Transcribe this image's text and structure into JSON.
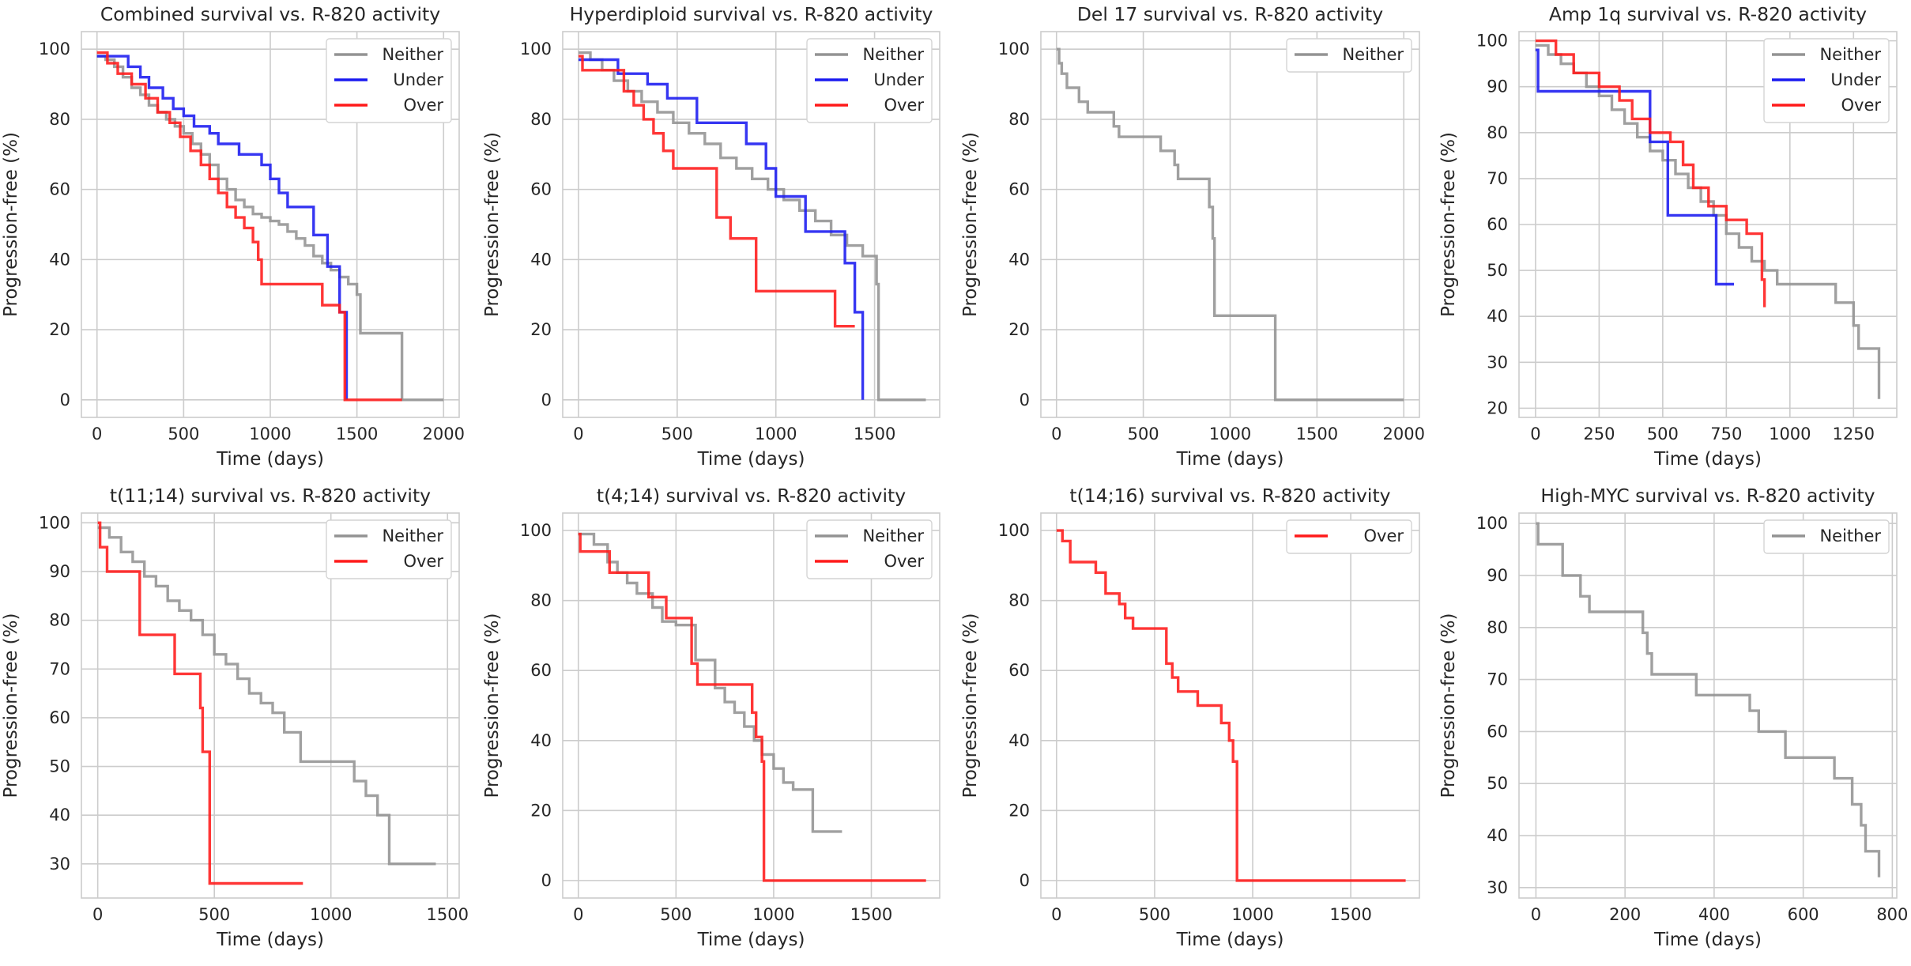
{
  "colors": {
    "Neither": "#939393",
    "Under": "#1a1af0",
    "Over": "#ff1a1a"
  },
  "chart_data": [
    {
      "type": "line",
      "title": "Combined survival vs. R-820 activity",
      "xlabel": "Time (days)",
      "ylabel": "Progression-free (%)",
      "xlim": [
        -90,
        2090
      ],
      "ylim": [
        -5,
        105
      ],
      "xticks": [
        0,
        500,
        1000,
        1500,
        2000
      ],
      "yticks": [
        0,
        20,
        40,
        60,
        80,
        100
      ],
      "grid": true,
      "legend": "top-right",
      "series": [
        {
          "name": "Neither",
          "x": [
            0,
            50,
            100,
            150,
            200,
            250,
            300,
            350,
            400,
            450,
            500,
            550,
            600,
            650,
            700,
            750,
            800,
            850,
            900,
            950,
            1000,
            1050,
            1100,
            1150,
            1200,
            1250,
            1300,
            1350,
            1400,
            1450,
            1500,
            1520,
            1750,
            1760,
            2000
          ],
          "y": [
            98,
            97,
            95,
            92,
            89,
            87,
            84,
            82,
            80,
            78,
            76,
            73,
            70,
            67,
            63,
            60,
            57,
            55,
            53,
            52,
            51,
            50,
            48,
            46,
            44,
            41,
            39,
            37,
            35,
            33,
            30,
            19,
            19,
            0,
            0
          ]
        },
        {
          "name": "Under",
          "x": [
            0,
            120,
            180,
            250,
            300,
            380,
            440,
            500,
            560,
            650,
            700,
            820,
            950,
            1000,
            1050,
            1100,
            1250,
            1330,
            1400,
            1440
          ],
          "y": [
            98,
            98,
            95,
            92,
            89,
            86,
            83,
            81,
            78,
            76,
            73,
            70,
            67,
            63,
            59,
            55,
            47,
            38,
            25,
            0
          ]
        },
        {
          "name": "Over",
          "x": [
            0,
            60,
            120,
            200,
            280,
            350,
            420,
            480,
            540,
            600,
            650,
            700,
            750,
            800,
            850,
            900,
            930,
            950,
            1300,
            1400,
            1430,
            1760
          ],
          "y": [
            99,
            96,
            93,
            90,
            86,
            82,
            79,
            75,
            71,
            67,
            63,
            59,
            55,
            52,
            49,
            45,
            40,
            33,
            27,
            25,
            0,
            0
          ]
        }
      ]
    },
    {
      "type": "line",
      "title": "Hyperdiploid survival vs. R-820 activity",
      "xlabel": "Time (days)",
      "ylabel": "Progression-free (%)",
      "xlim": [
        -80,
        1830
      ],
      "ylim": [
        -5,
        105
      ],
      "xticks": [
        0,
        500,
        1000,
        1500
      ],
      "yticks": [
        0,
        20,
        40,
        60,
        80,
        100
      ],
      "grid": true,
      "legend": "top-right",
      "series": [
        {
          "name": "Neither",
          "x": [
            0,
            60,
            120,
            180,
            250,
            320,
            400,
            480,
            560,
            640,
            720,
            800,
            880,
            960,
            1040,
            1120,
            1200,
            1280,
            1360,
            1440,
            1510,
            1520,
            1760
          ],
          "y": [
            99,
            97,
            94,
            91,
            88,
            85,
            82,
            79,
            76,
            73,
            69,
            66,
            63,
            60,
            57,
            54,
            51,
            47,
            44,
            41,
            33,
            0,
            0
          ]
        },
        {
          "name": "Under",
          "x": [
            0,
            150,
            200,
            350,
            450,
            600,
            850,
            950,
            1000,
            1150,
            1350,
            1400,
            1440
          ],
          "y": [
            97,
            97,
            93,
            90,
            86,
            79,
            73,
            66,
            58,
            48,
            39,
            25,
            0
          ]
        },
        {
          "name": "Over",
          "x": [
            0,
            20,
            230,
            280,
            330,
            380,
            430,
            480,
            520,
            700,
            770,
            900,
            1300,
            1400
          ],
          "y": [
            98,
            94,
            88,
            84,
            80,
            76,
            71,
            66,
            66,
            52,
            46,
            31,
            21,
            21
          ]
        }
      ]
    },
    {
      "type": "line",
      "title": "Del 17 survival vs. R-820 activity",
      "xlabel": "Time (days)",
      "ylabel": "Progression-free (%)",
      "xlim": [
        -90,
        2090
      ],
      "ylim": [
        -5,
        105
      ],
      "xticks": [
        0,
        500,
        1000,
        1500,
        2000
      ],
      "yticks": [
        0,
        20,
        40,
        60,
        80,
        100
      ],
      "grid": true,
      "legend": "top-right",
      "series": [
        {
          "name": "Neither",
          "x": [
            0,
            15,
            30,
            60,
            130,
            180,
            330,
            360,
            600,
            680,
            700,
            880,
            900,
            910,
            1250,
            1260,
            2000
          ],
          "y": [
            100,
            96,
            93,
            89,
            85,
            82,
            78,
            75,
            71,
            67,
            63,
            55,
            46,
            24,
            24,
            0,
            0
          ]
        }
      ]
    },
    {
      "type": "line",
      "title": "Amp 1q survival vs. R-820 activity",
      "xlabel": "Time (days)",
      "ylabel": "Progression-free (%)",
      "xlim": [
        -65,
        1420
      ],
      "ylim": [
        18,
        102
      ],
      "xticks": [
        0,
        250,
        500,
        750,
        1000,
        1250
      ],
      "yticks": [
        20,
        30,
        40,
        50,
        60,
        70,
        80,
        90,
        100
      ],
      "grid": true,
      "legend": "top-right",
      "series": [
        {
          "name": "Neither",
          "x": [
            0,
            50,
            100,
            150,
            200,
            250,
            300,
            350,
            400,
            450,
            500,
            550,
            600,
            650,
            700,
            750,
            800,
            850,
            900,
            950,
            1180,
            1250,
            1270,
            1350
          ],
          "y": [
            99,
            97,
            95,
            93,
            90,
            88,
            85,
            82,
            79,
            76,
            74,
            71,
            68,
            65,
            62,
            58,
            55,
            52,
            50,
            47,
            43,
            38,
            33,
            22
          ]
        },
        {
          "name": "Under",
          "x": [
            0,
            10,
            390,
            450,
            500,
            520,
            700,
            710,
            780
          ],
          "y": [
            98,
            89,
            89,
            78,
            78,
            62,
            62,
            47,
            47
          ]
        },
        {
          "name": "Over",
          "x": [
            0,
            80,
            150,
            250,
            330,
            380,
            450,
            530,
            580,
            620,
            680,
            750,
            830,
            890,
            900
          ],
          "y": [
            100,
            97,
            93,
            90,
            87,
            83,
            80,
            78,
            73,
            68,
            64,
            61,
            58,
            48,
            42
          ]
        }
      ]
    },
    {
      "type": "line",
      "title": "t(11;14) survival vs. R-820 activity",
      "xlabel": "Time (days)",
      "ylabel": "Progression-free (%)",
      "xlim": [
        -70,
        1550
      ],
      "ylim": [
        23,
        102
      ],
      "xticks": [
        0,
        500,
        1000,
        1500
      ],
      "yticks": [
        30,
        40,
        50,
        60,
        70,
        80,
        90,
        100
      ],
      "grid": true,
      "legend": "top-right",
      "series": [
        {
          "name": "Neither",
          "x": [
            0,
            50,
            100,
            150,
            200,
            250,
            300,
            350,
            400,
            450,
            500,
            550,
            600,
            650,
            700,
            750,
            800,
            870,
            1050,
            1100,
            1150,
            1200,
            1250,
            1450
          ],
          "y": [
            99,
            97,
            94,
            92,
            89,
            87,
            84,
            82,
            80,
            77,
            73,
            71,
            68,
            65,
            63,
            61,
            57,
            51,
            51,
            47,
            44,
            40,
            30,
            30
          ]
        },
        {
          "name": "Over",
          "x": [
            0,
            10,
            40,
            180,
            330,
            440,
            450,
            480,
            880
          ],
          "y": [
            100,
            95,
            90,
            77,
            69,
            62,
            53,
            26,
            26
          ]
        }
      ]
    },
    {
      "type": "line",
      "title": "t(4;14) survival vs. R-820 activity",
      "xlabel": "Time (days)",
      "ylabel": "Progression-free (%)",
      "xlim": [
        -80,
        1850
      ],
      "ylim": [
        -5,
        105
      ],
      "xticks": [
        0,
        500,
        1000,
        1500
      ],
      "yticks": [
        0,
        20,
        40,
        60,
        80,
        100
      ],
      "grid": true,
      "legend": "top-right",
      "series": [
        {
          "name": "Neither",
          "x": [
            0,
            80,
            150,
            200,
            250,
            300,
            380,
            430,
            470,
            500,
            600,
            700,
            750,
            800,
            850,
            900,
            940,
            1000,
            1050,
            1100,
            1200,
            1350
          ],
          "y": [
            99,
            96,
            91,
            88,
            85,
            82,
            78,
            74,
            74,
            73,
            63,
            55,
            51,
            48,
            44,
            40,
            36,
            32,
            28,
            26,
            14,
            14
          ]
        },
        {
          "name": "Over",
          "x": [
            0,
            10,
            160,
            360,
            450,
            580,
            610,
            890,
            910,
            940,
            950,
            1780
          ],
          "y": [
            99,
            94,
            88,
            81,
            75,
            62,
            56,
            48,
            41,
            34,
            0,
            0
          ]
        }
      ]
    },
    {
      "type": "line",
      "title": "t(14;16) survival vs. R-820 activity",
      "xlabel": "Time (days)",
      "ylabel": "Progression-free (%)",
      "xlim": [
        -80,
        1850
      ],
      "ylim": [
        -5,
        105
      ],
      "xticks": [
        0,
        500,
        1000,
        1500
      ],
      "yticks": [
        0,
        20,
        40,
        60,
        80,
        100
      ],
      "grid": true,
      "legend": "top-right",
      "series": [
        {
          "name": "Over",
          "x": [
            0,
            30,
            70,
            200,
            250,
            320,
            350,
            390,
            550,
            560,
            590,
            620,
            720,
            840,
            880,
            900,
            910,
            920,
            1780
          ],
          "y": [
            100,
            97,
            91,
            88,
            82,
            79,
            75,
            72,
            72,
            62,
            58,
            54,
            50,
            45,
            40,
            34,
            34,
            0,
            0
          ]
        }
      ]
    },
    {
      "type": "line",
      "title": "High-MYC survival vs. R-820 activity",
      "xlabel": "Time (days)",
      "ylabel": "Progression-free (%)",
      "xlim": [
        -38,
        810
      ],
      "ylim": [
        28,
        102
      ],
      "xticks": [
        0,
        200,
        400,
        600,
        800
      ],
      "yticks": [
        30,
        40,
        50,
        60,
        70,
        80,
        90,
        100
      ],
      "grid": true,
      "legend": "top-right",
      "series": [
        {
          "name": "Neither",
          "x": [
            0,
            5,
            60,
            100,
            120,
            240,
            250,
            260,
            360,
            480,
            500,
            560,
            670,
            710,
            730,
            740,
            770
          ],
          "y": [
            100,
            96,
            90,
            86,
            83,
            79,
            75,
            71,
            67,
            64,
            60,
            55,
            51,
            46,
            42,
            37,
            32
          ]
        }
      ]
    }
  ]
}
